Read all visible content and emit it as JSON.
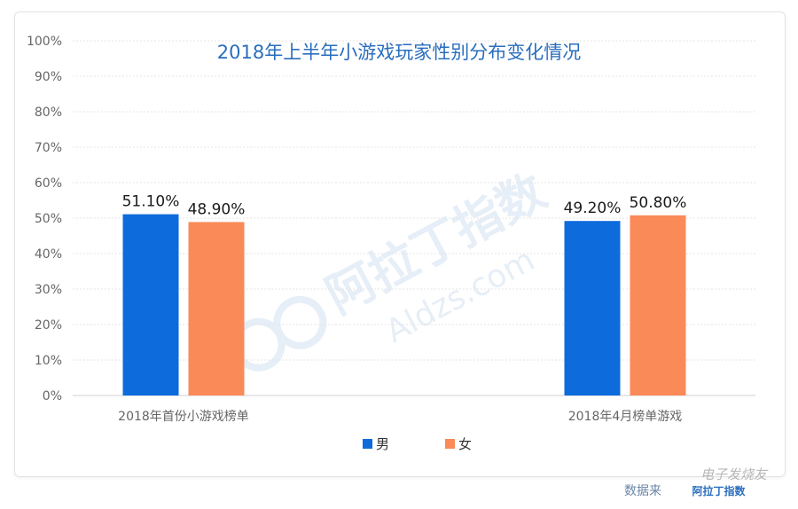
{
  "chart_data": {
    "type": "bar",
    "title": "2018年上半年小游戏玩家性别分布变化情况",
    "categories": [
      "2018年首份小游戏榜单",
      "2018年4月榜单游戏"
    ],
    "series": [
      {
        "name": "男",
        "values": [
          51.1,
          49.2
        ],
        "labels": [
          "51.10%",
          "49.20%"
        ],
        "color": "#0d6bdc"
      },
      {
        "name": "女",
        "values": [
          48.9,
          50.8
        ],
        "labels": [
          "48.90%",
          "50.80%"
        ],
        "color": "#fa8a58"
      }
    ],
    "ylim": [
      0,
      100
    ],
    "yticks": [
      "0%",
      "10%",
      "20%",
      "30%",
      "40%",
      "50%",
      "60%",
      "70%",
      "80%",
      "90%",
      "100%"
    ],
    "grid": true,
    "legend_position": "bottom-center"
  },
  "watermark": {
    "brand": "阿拉丁指数",
    "site": "Aldzs.com"
  },
  "footer": {
    "source": "数据来",
    "logo_text": "阿拉丁指数",
    "stamp": "电子发烧友"
  },
  "colors": {
    "title": "#2a6ebd",
    "axis_text": "#666666",
    "grid": "#e4e4e4",
    "baseline": "#cfcfcf"
  }
}
